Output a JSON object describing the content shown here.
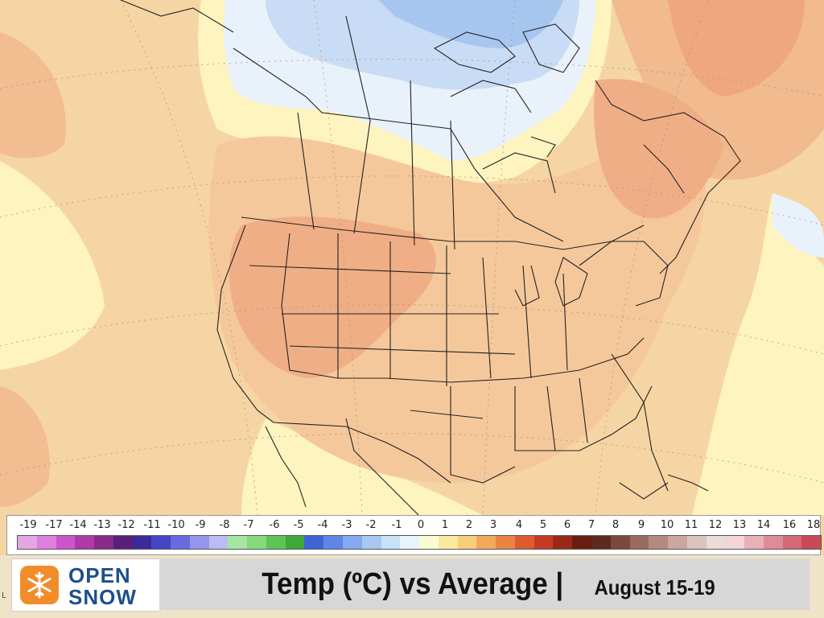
{
  "map": {
    "colors": {
      "ocean_warm": "#f6d5a4",
      "warm_1": "#fdf4c0",
      "warm_2": "#f9e3b2",
      "warm_3": "#f5c89c",
      "warm_4": "#f0ae86",
      "warm_5": "#ed9870",
      "cool_1": "#e9f1fb",
      "cool_2": "#c9dcf5",
      "cool_3": "#a7c6ef",
      "border": "#222222",
      "graticule": "#b08a6a"
    }
  },
  "legend": {
    "labels": [
      "-19",
      "-17",
      "-14",
      "-13",
      "-12",
      "-11",
      "-10",
      "-9",
      "-8",
      "-7",
      "-6",
      "-5",
      "-4",
      "-3",
      "-2",
      "-1",
      "0",
      "1",
      "2",
      "3",
      "4",
      "5",
      "6",
      "7",
      "8",
      "9",
      "10",
      "11",
      "12",
      "13",
      "14",
      "16",
      "18"
    ],
    "colors": [
      "#e6a6e6",
      "#dd7fdd",
      "#cc55cc",
      "#b03aa8",
      "#8a2a8a",
      "#5a1f7a",
      "#3a2a9a",
      "#4545c8",
      "#6a6ae0",
      "#9595ee",
      "#bcbcf4",
      "#a7e6a0",
      "#86d97c",
      "#5fc456",
      "#3fa83a",
      "#3f64d8",
      "#5f86e6",
      "#86a8f0",
      "#a8c8f4",
      "#c8e2f8",
      "#e6f4fb",
      "#fbfbd2",
      "#fbe9a0",
      "#f7cf7c",
      "#f1aa5c",
      "#ea8442",
      "#dc5c30",
      "#c43a22",
      "#9a2a16",
      "#6a1e10",
      "#5a2a20",
      "#7a4a40",
      "#9a6a60",
      "#b48a80",
      "#caa8a0",
      "#dcc4be",
      "#ecdcd8",
      "#f3d4d8",
      "#eab0b8",
      "#df8c96",
      "#d46874",
      "#c84a56"
    ]
  },
  "logo": {
    "line1": "OPEN",
    "line2": "SNOW",
    "brand_orange": "#f28c28",
    "brand_blue": "#1f4e8c"
  },
  "title": {
    "main": "Temp (ºC) vs Average |",
    "dates": "August 15-19"
  },
  "corner_char": "L"
}
